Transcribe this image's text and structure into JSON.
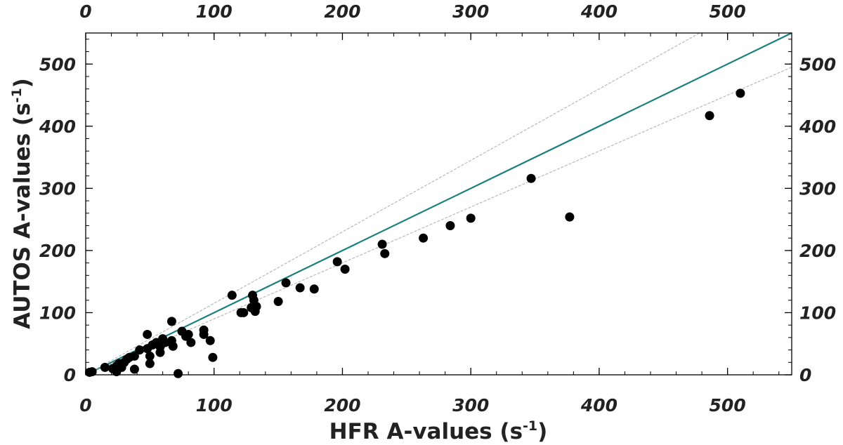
{
  "chart_data": {
    "type": "scatter",
    "xlabel": "HFR A-values (s",
    "xlabel_sup": "-1",
    "xlabel_close": ")",
    "ylabel": "AUTOS A-values (s",
    "ylabel_sup": "-1",
    "ylabel_close": ")",
    "xlim": [
      0,
      550
    ],
    "ylim": [
      0,
      550
    ],
    "x_ticks": [
      "0",
      "100",
      "200",
      "300",
      "400",
      "500"
    ],
    "y_ticks": [
      "0",
      "100",
      "200",
      "300",
      "400",
      "500"
    ],
    "x_tick_values": [
      0,
      100,
      200,
      300,
      400,
      500
    ],
    "y_tick_values": [
      0,
      100,
      200,
      300,
      400,
      500
    ],
    "minor_step": 20,
    "grid": false,
    "reference_lines": [
      {
        "name": "identity",
        "slope": 1.0,
        "color": "#1a7f7f",
        "style": "solid"
      },
      {
        "name": "upper-bound",
        "slope": 1.15,
        "color": "#b3b3b3",
        "style": "dashed"
      },
      {
        "name": "lower-bound",
        "slope": 0.9,
        "color": "#b3b3b3",
        "style": "dashed"
      }
    ],
    "series": [
      {
        "name": "points",
        "color": "#000000",
        "points": [
          [
            3,
            4
          ],
          [
            5,
            5
          ],
          [
            15,
            12
          ],
          [
            21,
            10
          ],
          [
            24,
            5
          ],
          [
            24,
            14
          ],
          [
            26,
            18
          ],
          [
            28,
            12
          ],
          [
            30,
            20
          ],
          [
            32,
            25
          ],
          [
            34,
            28
          ],
          [
            38,
            30
          ],
          [
            38,
            9
          ],
          [
            42,
            40
          ],
          [
            48,
            65
          ],
          [
            48,
            42
          ],
          [
            50,
            30
          ],
          [
            50,
            18
          ],
          [
            52,
            48
          ],
          [
            55,
            52
          ],
          [
            58,
            36
          ],
          [
            58,
            45
          ],
          [
            60,
            58
          ],
          [
            62,
            52
          ],
          [
            67,
            86
          ],
          [
            67,
            55
          ],
          [
            68,
            46
          ],
          [
            72,
            2
          ],
          [
            75,
            70
          ],
          [
            78,
            62
          ],
          [
            80,
            65
          ],
          [
            82,
            52
          ],
          [
            92,
            72
          ],
          [
            92,
            65
          ],
          [
            97,
            55
          ],
          [
            99,
            28
          ],
          [
            114,
            128
          ],
          [
            121,
            100
          ],
          [
            123,
            100
          ],
          [
            129,
            108
          ],
          [
            130,
            128
          ],
          [
            131,
            120
          ],
          [
            132,
            102
          ],
          [
            133,
            110
          ],
          [
            150,
            118
          ],
          [
            156,
            148
          ],
          [
            167,
            140
          ],
          [
            178,
            138
          ],
          [
            196,
            182
          ],
          [
            202,
            170
          ],
          [
            231,
            210
          ],
          [
            233,
            195
          ],
          [
            263,
            220
          ],
          [
            284,
            240
          ],
          [
            300,
            252
          ],
          [
            347,
            316
          ],
          [
            377,
            254
          ],
          [
            486,
            417
          ],
          [
            510,
            453
          ]
        ]
      }
    ]
  }
}
